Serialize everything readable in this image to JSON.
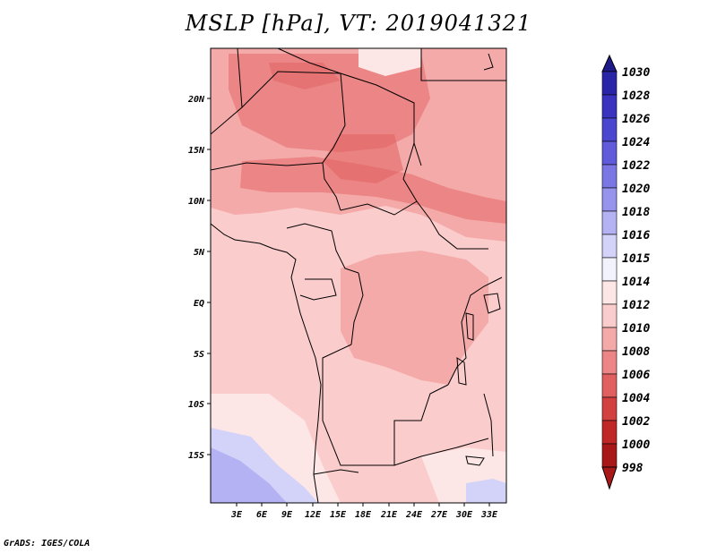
{
  "title": "MSLP [hPa], VT: 2019041321",
  "credit": "GrADS: IGES/COLA",
  "map": {
    "lat_labels": [
      "20N",
      "15N",
      "10N",
      "5N",
      "EQ",
      "5S",
      "10S",
      "15S"
    ],
    "lon_labels": [
      "3E",
      "6E",
      "9E",
      "12E",
      "15E",
      "18E",
      "21E",
      "24E",
      "27E",
      "30E",
      "33E"
    ]
  },
  "colorbar": {
    "levels": [
      "1030",
      "1028",
      "1026",
      "1024",
      "1022",
      "1020",
      "1018",
      "1016",
      "1015",
      "1014",
      "1012",
      "1010",
      "1008",
      "1006",
      "1004",
      "1002",
      "1000",
      "998"
    ],
    "colors": [
      "#1e1a8a",
      "#2a24a6",
      "#3a33c0",
      "#4a46cf",
      "#5f5bdb",
      "#7a77e4",
      "#9693ec",
      "#b4b2f2",
      "#d3d2f8",
      "#f2f2fc",
      "#fde6e6",
      "#fbcccc",
      "#f5aaaa",
      "#ec8585",
      "#e06060",
      "#d24040",
      "#c02828",
      "#a81818"
    ]
  }
}
